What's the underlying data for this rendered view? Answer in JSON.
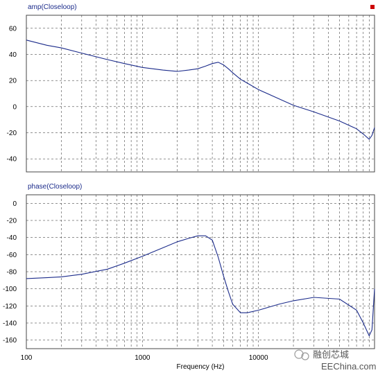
{
  "chart_data": [
    {
      "type": "line",
      "title": "amp(Closeloop)",
      "xscale": "log",
      "xlim": [
        100,
        100000
      ],
      "ylim": [
        -50,
        70
      ],
      "yticks": [
        -40,
        -20,
        0,
        20,
        40,
        60
      ],
      "grid": true,
      "color": "#1a2a8a",
      "marker_color": "#cc0000",
      "x": [
        100,
        150,
        200,
        300,
        500,
        700,
        1000,
        1500,
        2000,
        2500,
        3000,
        3500,
        4000,
        4500,
        5000,
        5500,
        6000,
        7000,
        8000,
        10000,
        15000,
        20000,
        30000,
        50000,
        70000,
        80000,
        90000,
        95000,
        100000
      ],
      "y": [
        51,
        47,
        45,
        41,
        36,
        33,
        30,
        28,
        27,
        28,
        29,
        31,
        33,
        34,
        32,
        29,
        26,
        21,
        18,
        13,
        6,
        1,
        -4,
        -11,
        -17,
        -21,
        -25,
        -22,
        -16
      ]
    },
    {
      "type": "line",
      "title": "phase(Closeloop)",
      "xscale": "log",
      "xlim": [
        100,
        100000
      ],
      "ylim": [
        -170,
        10
      ],
      "yticks": [
        -160,
        -140,
        -120,
        -100,
        -80,
        -60,
        -40,
        -20,
        0
      ],
      "xticks": [
        "100",
        "1000",
        "10000"
      ],
      "xlabel": "Frequency (Hz)",
      "grid": true,
      "color": "#1a2a8a",
      "x": [
        100,
        150,
        200,
        300,
        500,
        700,
        1000,
        1500,
        2000,
        2500,
        3000,
        3500,
        4000,
        4500,
        5000,
        5500,
        6000,
        7000,
        8000,
        10000,
        15000,
        20000,
        30000,
        50000,
        70000,
        80000,
        90000,
        95000,
        100000
      ],
      "y": [
        -88,
        -87,
        -86,
        -83,
        -77,
        -70,
        -62,
        -52,
        -45,
        -41,
        -38,
        -38,
        -43,
        -63,
        -85,
        -103,
        -118,
        -128,
        -128,
        -125,
        -118,
        -114,
        -110,
        -112,
        -125,
        -140,
        -155,
        -148,
        -100
      ]
    }
  ],
  "watermark": {
    "text": "EEChina.com",
    "logo_text": "融创芯城"
  }
}
